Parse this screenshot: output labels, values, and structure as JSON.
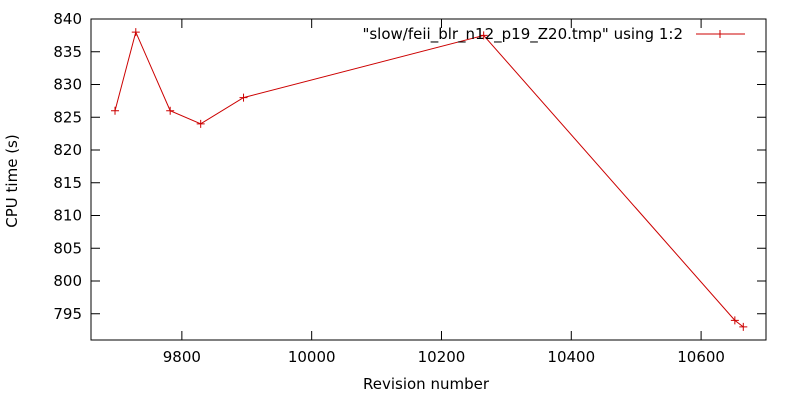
{
  "chart_data": {
    "type": "line",
    "title": "",
    "xlabel": "Revision number",
    "ylabel": "CPU time (s)",
    "xlim": [
      9660,
      10700
    ],
    "ylim": [
      791,
      840
    ],
    "x_ticks": [
      9800,
      10000,
      10200,
      10400,
      10600
    ],
    "y_ticks": [
      795,
      800,
      805,
      810,
      815,
      820,
      825,
      830,
      835,
      840
    ],
    "grid": false,
    "legend_position": "top-right",
    "series": [
      {
        "name": "\"slow/feii_blr_n12_p19_Z20.tmp\" using 1:2",
        "color": "#cc0000",
        "marker": "plus",
        "x": [
          9697,
          9729,
          9782,
          9829,
          9895,
          10265,
          10652,
          10665
        ],
        "y": [
          826,
          838,
          826,
          824,
          828,
          837.5,
          794,
          793
        ]
      }
    ]
  }
}
